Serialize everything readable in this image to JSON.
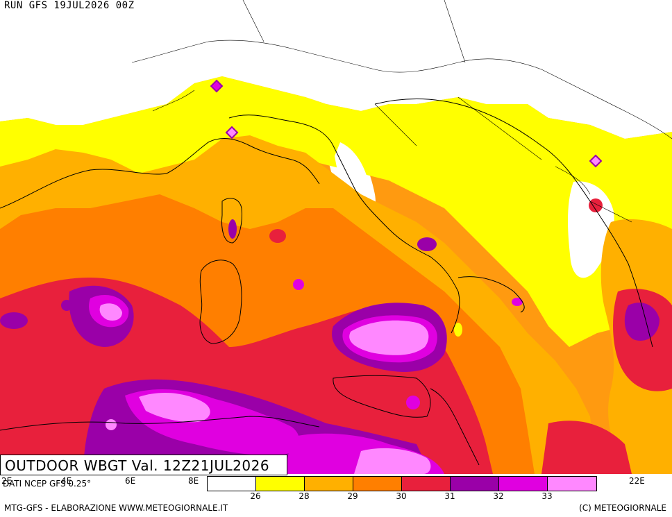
{
  "header": {
    "run_label": "RUN GFS 19JUL2026 00Z"
  },
  "title": {
    "text": "OUTDOOR WBGT Val. 12Z21JUL2026"
  },
  "source": {
    "text": "DATI NCEP GFS 0.25°"
  },
  "footer": {
    "left": "MTG-GFS - ELABORAZIONE WWW.METEOGIORNALE.IT",
    "right": "(C) METEOGIORNALE"
  },
  "longitude_labels": [
    "2E",
    "4E",
    "6E",
    "8E",
    "22E"
  ],
  "legend": {
    "colors": [
      "#ffffff",
      "#ffff00",
      "#ffb000",
      "#ff7f00",
      "#e8203c",
      "#9a00a8",
      "#e000e0",
      "#ff88ff"
    ],
    "ticks": [
      "26",
      "28",
      "29",
      "30",
      "31",
      "32",
      "33"
    ]
  }
}
